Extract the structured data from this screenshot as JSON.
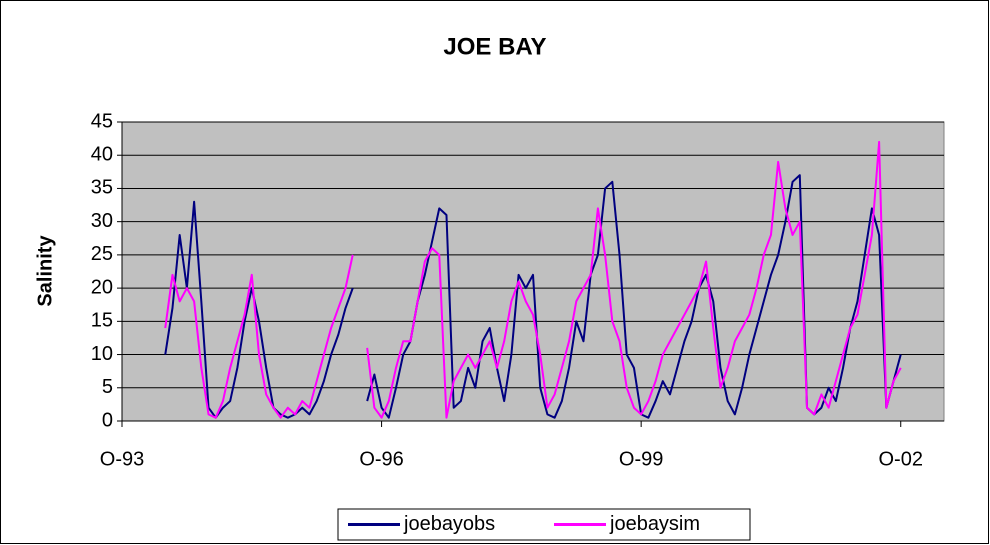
{
  "chart_data": {
    "type": "line",
    "title": "JOE BAY",
    "y_label": "Salinity",
    "x": [
      "1994-04",
      "1994-05",
      "1994-06",
      "1994-07",
      "1994-08",
      "1994-09",
      "1994-10",
      "1994-11",
      "1994-12",
      "1995-01",
      "1995-02",
      "1995-03",
      "1995-04",
      "1995-05",
      "1995-06",
      "1995-07",
      "1995-08",
      "1995-09",
      "1995-10",
      "1995-11",
      "1995-12",
      "1996-01",
      "1996-02",
      "1996-03",
      "1996-04",
      "1996-05",
      "1996-06",
      "1996-07",
      "1996-08",
      "1996-09",
      "1996-10",
      "1996-11",
      "1996-12",
      "1997-01",
      "1997-02",
      "1997-03",
      "1997-04",
      "1997-05",
      "1997-06",
      "1997-07",
      "1997-08",
      "1997-09",
      "1997-10",
      "1997-11",
      "1997-12",
      "1998-01",
      "1998-02",
      "1998-03",
      "1998-04",
      "1998-05",
      "1998-06",
      "1998-07",
      "1998-08",
      "1998-09",
      "1998-10",
      "1998-11",
      "1998-12",
      "1999-01",
      "1999-02",
      "1999-03",
      "1999-04",
      "1999-05",
      "1999-06",
      "1999-07",
      "1999-08",
      "1999-09",
      "1999-10",
      "1999-11",
      "1999-12",
      "2000-01",
      "2000-02",
      "2000-03",
      "2000-04",
      "2000-05",
      "2000-06",
      "2000-07",
      "2000-08",
      "2000-09",
      "2000-10",
      "2000-11",
      "2000-12",
      "2001-01",
      "2001-02",
      "2001-03",
      "2001-04",
      "2001-05",
      "2001-06",
      "2001-07",
      "2001-08",
      "2001-09",
      "2001-10",
      "2001-11",
      "2001-12",
      "2002-01",
      "2002-02",
      "2002-03",
      "2002-04",
      "2002-05",
      "2002-06",
      "2002-07",
      "2002-08",
      "2002-09",
      "2002-10"
    ],
    "series": [
      {
        "name": "joebayobs",
        "color": "#000080",
        "values": [
          10,
          17,
          28,
          20,
          33,
          18,
          2,
          0.5,
          2,
          3,
          8,
          15,
          20,
          15,
          8,
          2,
          1,
          0.5,
          1,
          2,
          1,
          3,
          6,
          10,
          13,
          17,
          20,
          null,
          3,
          7,
          2,
          0.5,
          5,
          10,
          12,
          18,
          22,
          27,
          32,
          31,
          2,
          3,
          8,
          5,
          12,
          14,
          8,
          3,
          10,
          22,
          20,
          22,
          5,
          1,
          0.5,
          3,
          8,
          15,
          12,
          22,
          25,
          35,
          36,
          25,
          10,
          8,
          1,
          0.5,
          3,
          6,
          4,
          8,
          12,
          15,
          20,
          22,
          18,
          8,
          3,
          1,
          5,
          10,
          14,
          18,
          22,
          25,
          30,
          36,
          37,
          2,
          1,
          2,
          5,
          3,
          8,
          14,
          18,
          25,
          32,
          28,
          2,
          6,
          10
        ]
      },
      {
        "name": "joebaysim",
        "color": "#ff00ff",
        "values": [
          14,
          22,
          18,
          20,
          18,
          8,
          1,
          0.5,
          3,
          8,
          12,
          16,
          22,
          10,
          4,
          2,
          0.5,
          2,
          1,
          3,
          2,
          6,
          10,
          14,
          17,
          20,
          25,
          null,
          11,
          2,
          0.5,
          3,
          8,
          12,
          12,
          18,
          24,
          26,
          25,
          0.5,
          6,
          8,
          10,
          8,
          10,
          12,
          8,
          12,
          18,
          21,
          18,
          16,
          10,
          2,
          4,
          8,
          12,
          18,
          20,
          22,
          32,
          25,
          15,
          12,
          5,
          2,
          1,
          3,
          6,
          10,
          12,
          14,
          16,
          18,
          20,
          24,
          14,
          5,
          8,
          12,
          14,
          16,
          20,
          25,
          28,
          39,
          32,
          28,
          30,
          2,
          1,
          4,
          2,
          6,
          10,
          14,
          16,
          22,
          28,
          42,
          2,
          6,
          8
        ]
      }
    ],
    "xlim": [
      "1993-10",
      "2003-04"
    ],
    "xticks": [
      {
        "value": "1993-10",
        "label": "O-93"
      },
      {
        "value": "1996-10",
        "label": "O-96"
      },
      {
        "value": "1999-10",
        "label": "O-99"
      },
      {
        "value": "2002-10",
        "label": "O-02"
      }
    ],
    "ylim": [
      0,
      45
    ],
    "yticks": [
      0,
      5,
      10,
      15,
      20,
      25,
      30,
      35,
      40,
      45
    ],
    "grid": true,
    "plot_background": "#c0c0c0",
    "legend": "bottom"
  }
}
